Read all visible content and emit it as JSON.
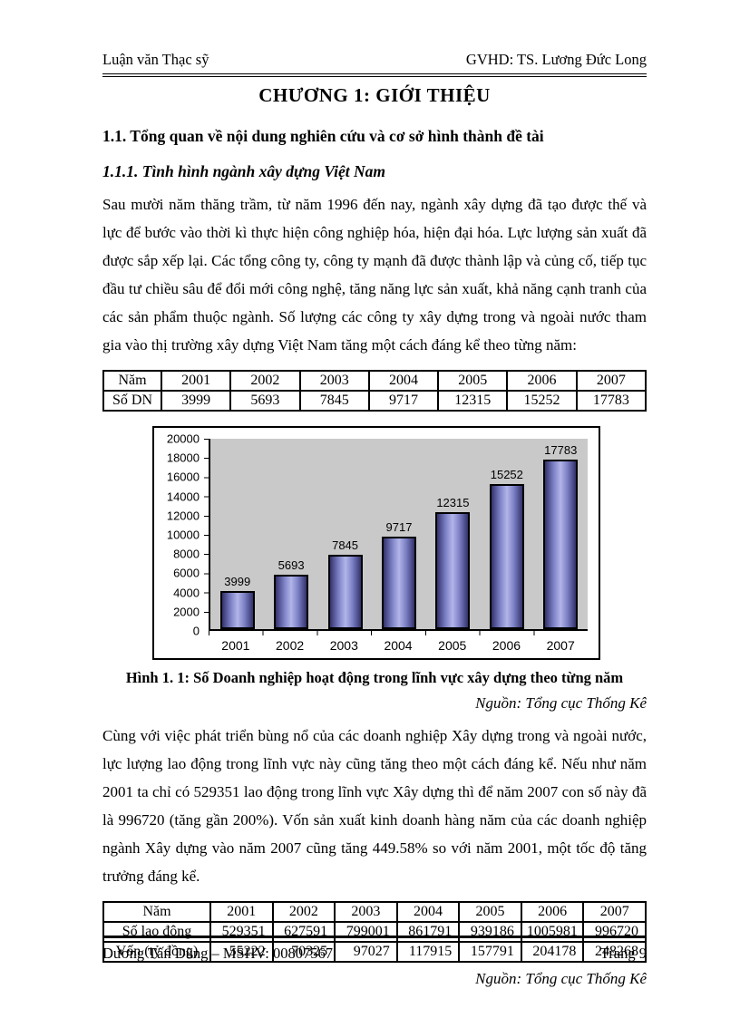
{
  "header": {
    "left": "Luận văn Thạc sỹ",
    "right": "GVHD: TS. Lương Đức Long"
  },
  "title": "CHƯƠNG 1: GIỚI THIỆU",
  "section_heading": "1.1. Tổng quan về nội dung nghiên cứu và cơ sở hình thành đề tài",
  "subsection_heading": "1.1.1. Tình hình ngành xây dựng Việt Nam",
  "paragraph1": "Sau mười năm thăng trầm, từ năm 1996 đến nay, ngành xây dựng đã tạo được thế và lực để bước vào thời kì thực hiện công nghiệp hóa, hiện đại hóa. Lực lượng sản xuất đã được sắp xếp lại. Các tổng công ty, công ty mạnh đã được thành lập và củng cố, tiếp tục đầu tư chiều sâu để đổi mới công nghệ, tăng năng lực sản xuất, khả năng cạnh tranh của các sản phẩm thuộc ngành. Số lượng các công ty xây dựng trong và ngoài nước tham gia vào thị trường xây dựng Việt Nam tăng một cách đáng kể theo từng năm:",
  "table1": {
    "rows": [
      [
        "Năm",
        "2001",
        "2002",
        "2003",
        "2004",
        "2005",
        "2006",
        "2007"
      ],
      [
        "Số DN",
        "3999",
        "5693",
        "7845",
        "9717",
        "12315",
        "15252",
        "17783"
      ]
    ],
    "align": [
      "center",
      "center"
    ]
  },
  "chart_data": {
    "type": "bar",
    "categories": [
      "2001",
      "2002",
      "2003",
      "2004",
      "2005",
      "2006",
      "2007"
    ],
    "values": [
      3999,
      5693,
      7845,
      9717,
      12315,
      15252,
      17783
    ],
    "title": "",
    "xlabel": "",
    "ylabel": "",
    "ylim": [
      0,
      20000
    ],
    "ytick_step": 2000,
    "grid": false,
    "legend": false,
    "data_labels": true,
    "bar_color_center": "#b2b5e8",
    "bar_color_edge": "#32326b",
    "plot_bg": "#c9c9c9"
  },
  "figure_caption": "Hình 1. 1: Số Doanh nghiệp hoạt động trong lĩnh vực xây dựng theo từng năm",
  "source1": "Nguồn: Tổng cục Thống Kê",
  "paragraph2": "Cùng với việc phát triển bùng nổ của các doanh nghiệp Xây dựng trong và ngoài nước, lực lượng lao động trong lĩnh vực này cũng tăng theo một cách đáng kể. Nếu như năm 2001 ta chỉ có 529351 lao động trong lĩnh vực Xây dựng thì để năm 2007 con số này đã là 996720 (tăng gần 200%). Vốn sản xuất kinh doanh hàng năm của các doanh nghiệp ngành Xây dựng vào năm 2007 cũng tăng 449.58% so với năm 2001, một tốc độ tăng trưởng đáng kể.",
  "table2": {
    "rows": [
      [
        "Năm",
        "2001",
        "2002",
        "2003",
        "2004",
        "2005",
        "2006",
        "2007"
      ],
      [
        "Số lao động",
        "529351",
        "627591",
        "799001",
        "861791",
        "939186",
        "1005981",
        "996720"
      ],
      [
        "Vốn (tỷ đồng)",
        "55222",
        "70325",
        "97027",
        "117915",
        "157791",
        "204178",
        "248268"
      ]
    ],
    "align": [
      "center",
      "right",
      "right"
    ]
  },
  "source2": "Nguồn: Tổng cục Thống Kê",
  "footer": {
    "left": "Dương Tấn Dũng – MSHV: 00807567",
    "right": "Trang 9"
  }
}
